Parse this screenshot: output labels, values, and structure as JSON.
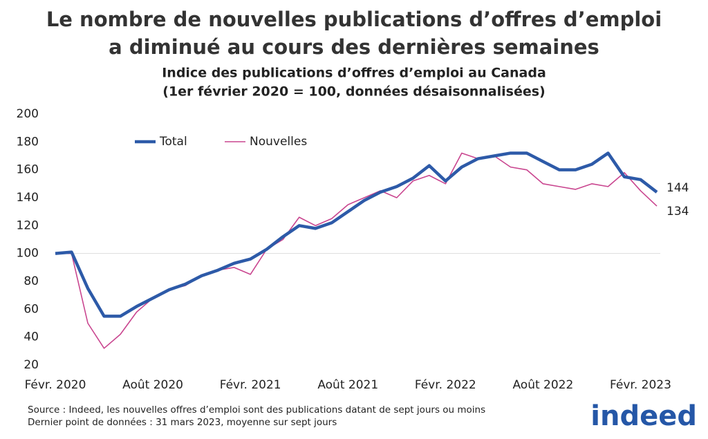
{
  "chart_data": {
    "type": "line",
    "title": [
      "Le nombre de nouvelles publications d’offres d’emploi",
      "a diminué au cours des dernières semaines"
    ],
    "subtitle": [
      "Indice des publications d’offres d’emploi au Canada",
      "(1er février 2020 = 100, données désaisonnalisées)"
    ],
    "x": [
      "2020-02",
      "2020-03",
      "2020-04",
      "2020-05",
      "2020-06",
      "2020-07",
      "2020-08",
      "2020-09",
      "2020-10",
      "2020-11",
      "2020-12",
      "2021-01",
      "2021-02",
      "2021-03",
      "2021-04",
      "2021-05",
      "2021-06",
      "2021-07",
      "2021-08",
      "2021-09",
      "2021-10",
      "2021-11",
      "2021-12",
      "2022-01",
      "2022-02",
      "2022-03",
      "2022-04",
      "2022-05",
      "2022-06",
      "2022-07",
      "2022-08",
      "2022-09",
      "2022-10",
      "2022-11",
      "2022-12",
      "2023-01",
      "2023-02",
      "2023-03"
    ],
    "series": [
      {
        "name": "Total",
        "color": "#2d5aa8",
        "width": 4.5,
        "values": [
          100,
          101,
          75,
          55,
          55,
          62,
          68,
          74,
          78,
          84,
          88,
          93,
          96,
          103,
          112,
          120,
          118,
          122,
          130,
          138,
          144,
          148,
          154,
          163,
          152,
          162,
          168,
          170,
          172,
          172,
          166,
          160,
          160,
          164,
          172,
          155,
          153,
          144
        ]
      },
      {
        "name": "Nouvelles",
        "color": "#c9458f",
        "width": 1.6,
        "values": [
          100,
          100,
          50,
          32,
          42,
          58,
          68,
          74,
          77,
          84,
          88,
          90,
          85,
          103,
          110,
          126,
          120,
          125,
          135,
          140,
          145,
          140,
          152,
          156,
          150,
          172,
          168,
          170,
          162,
          160,
          150,
          148,
          146,
          150,
          148,
          158,
          145,
          134
        ]
      }
    ],
    "xlim": [
      "2020-02",
      "2023-03"
    ],
    "xticks": [
      {
        "value": "2020-02",
        "label": "Févr. 2020"
      },
      {
        "value": "2020-08",
        "label": "Août 2020"
      },
      {
        "value": "2021-02",
        "label": "Févr. 2021"
      },
      {
        "value": "2021-08",
        "label": "Août 2021"
      },
      {
        "value": "2022-02",
        "label": "Févr. 2022"
      },
      {
        "value": "2022-08",
        "label": "Août 2022"
      },
      {
        "value": "2023-02",
        "label": "Févr. 2023"
      }
    ],
    "ylim": [
      20,
      200
    ],
    "yticks": [
      20,
      40,
      60,
      80,
      100,
      120,
      140,
      160,
      180,
      200
    ],
    "hline": 100,
    "legend": "upper left",
    "source": "Source : Indeed, les nouvelles offres d’emploi sont des publications datant de sept jours ou moins",
    "note": "Dernier point de données : 31 mars 2023, moyenne sur sept jours",
    "logo": "indeed"
  }
}
